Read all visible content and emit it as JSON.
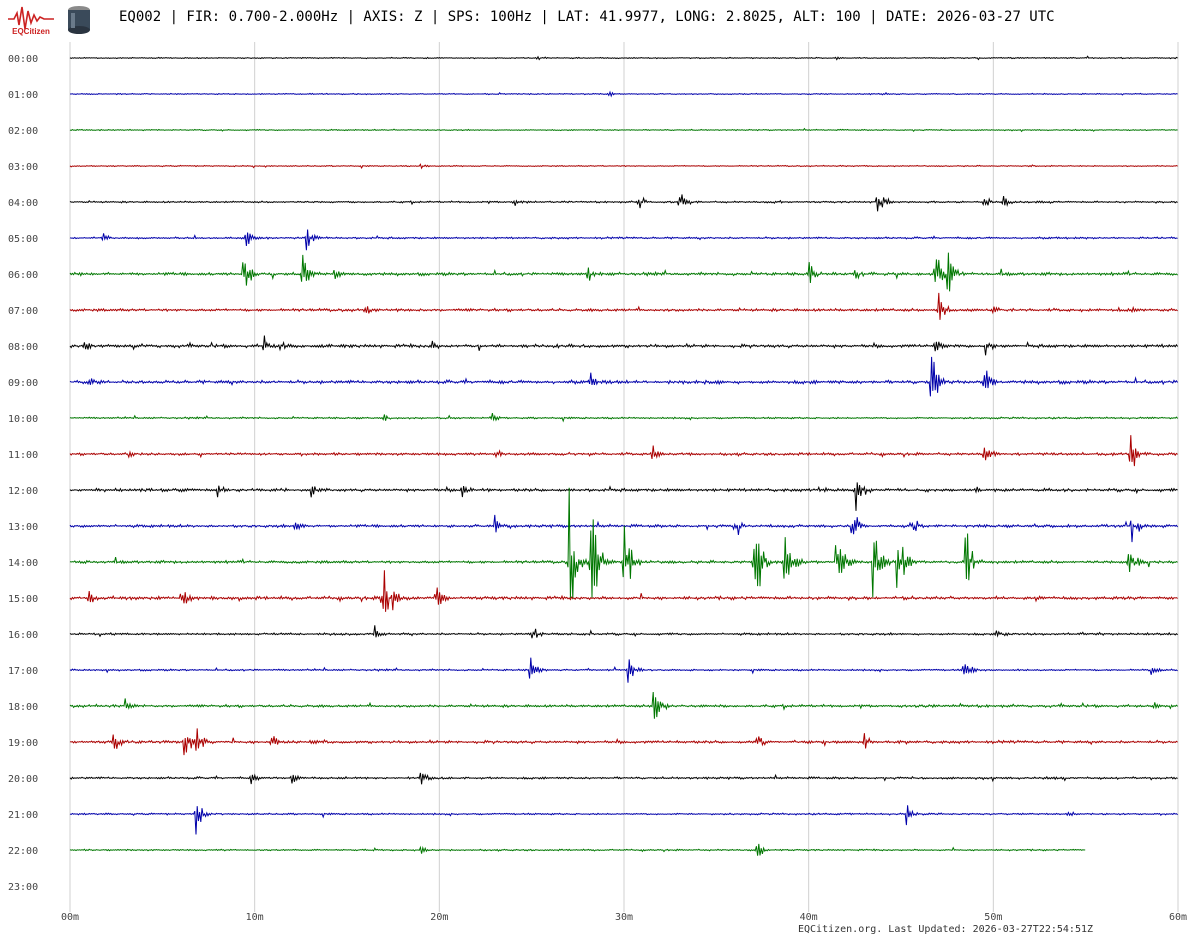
{
  "header": {
    "logo_text": "EQCitizen",
    "title": "EQ002 | FIR: 0.700-2.000Hz | AXIS: Z | SPS: 100Hz | LAT: 41.9977, LONG: 2.8025, ALT: 100 | DATE: 2026-03-27 UTC"
  },
  "footer": {
    "text": "EQCitizen.org. Last Updated: 2026-03-27T22:54:51Z"
  },
  "colors": {
    "cycle": [
      "#000000",
      "#0000aa",
      "#007700",
      "#aa0000"
    ],
    "grid": "#d0d0d0",
    "axis_text": "#444444"
  },
  "chart_data": {
    "type": "line",
    "kind": "helicorder",
    "title": "",
    "xlabel": "",
    "ylabel": "",
    "xlim": [
      0,
      60
    ],
    "x_tick_labels": [
      "00m",
      "10m",
      "20m",
      "30m",
      "40m",
      "50m",
      "60m"
    ],
    "x_tick_values": [
      0,
      10,
      20,
      30,
      40,
      50,
      60
    ],
    "row_labels": [
      "00:00",
      "01:00",
      "02:00",
      "03:00",
      "04:00",
      "05:00",
      "06:00",
      "07:00",
      "08:00",
      "09:00",
      "10:00",
      "11:00",
      "12:00",
      "13:00",
      "14:00",
      "15:00",
      "16:00",
      "17:00",
      "18:00",
      "19:00",
      "20:00",
      "21:00",
      "22:00",
      "23:00"
    ],
    "grid": true,
    "trace_end_minute_last_row": 55,
    "base_noise": [
      0.5,
      0.5,
      0.5,
      0.5,
      0.8,
      0.9,
      1.4,
      1.3,
      1.5,
      1.6,
      0.8,
      1.2,
      1.4,
      1.3,
      1.3,
      1.5,
      1.0,
      0.8,
      1.2,
      1.3,
      1.0,
      0.8,
      0.7,
      0
    ],
    "events": [
      {
        "row": 0,
        "minute": 25.3,
        "amp": 4
      },
      {
        "row": 0,
        "minute": 41.5,
        "amp": 2
      },
      {
        "row": 1,
        "minute": 29.2,
        "amp": 4
      },
      {
        "row": 1,
        "minute": 44,
        "amp": 3
      },
      {
        "row": 2,
        "minute": 17.5,
        "amp": 2
      },
      {
        "row": 3,
        "minute": 19,
        "amp": 3
      },
      {
        "row": 3,
        "minute": 52,
        "amp": 2
      },
      {
        "row": 4,
        "minute": 24,
        "amp": 8
      },
      {
        "row": 4,
        "minute": 30.8,
        "amp": 10
      },
      {
        "row": 4,
        "minute": 33,
        "amp": 18
      },
      {
        "row": 4,
        "minute": 43.7,
        "amp": 20
      },
      {
        "row": 4,
        "minute": 49.5,
        "amp": 10
      },
      {
        "row": 4,
        "minute": 50.5,
        "amp": 9
      },
      {
        "row": 5,
        "minute": 1.8,
        "amp": 6
      },
      {
        "row": 5,
        "minute": 9.5,
        "amp": 16
      },
      {
        "row": 5,
        "minute": 12.8,
        "amp": 20
      },
      {
        "row": 6,
        "minute": 9.4,
        "amp": 32
      },
      {
        "row": 6,
        "minute": 12.6,
        "amp": 32
      },
      {
        "row": 6,
        "minute": 14.3,
        "amp": 10
      },
      {
        "row": 6,
        "minute": 28,
        "amp": 12
      },
      {
        "row": 6,
        "minute": 40,
        "amp": 20
      },
      {
        "row": 6,
        "minute": 42.5,
        "amp": 10
      },
      {
        "row": 6,
        "minute": 46.8,
        "amp": 40
      },
      {
        "row": 6,
        "minute": 47.5,
        "amp": 38
      },
      {
        "row": 7,
        "minute": 16,
        "amp": 10
      },
      {
        "row": 7,
        "minute": 47,
        "amp": 28
      },
      {
        "row": 7,
        "minute": 50,
        "amp": 10
      },
      {
        "row": 7,
        "minute": 57.5,
        "amp": 9
      },
      {
        "row": 8,
        "minute": 0.8,
        "amp": 8
      },
      {
        "row": 8,
        "minute": 10.5,
        "amp": 12
      },
      {
        "row": 8,
        "minute": 11.4,
        "amp": 12
      },
      {
        "row": 8,
        "minute": 19.6,
        "amp": 10
      },
      {
        "row": 8,
        "minute": 46.8,
        "amp": 18
      },
      {
        "row": 8,
        "minute": 49.6,
        "amp": 14
      },
      {
        "row": 9,
        "minute": 1,
        "amp": 8
      },
      {
        "row": 9,
        "minute": 28.2,
        "amp": 16
      },
      {
        "row": 9,
        "minute": 46.6,
        "amp": 56
      },
      {
        "row": 9,
        "minute": 49.5,
        "amp": 24
      },
      {
        "row": 10,
        "minute": 17,
        "amp": 6
      },
      {
        "row": 10,
        "minute": 22.8,
        "amp": 8
      },
      {
        "row": 11,
        "minute": 3.2,
        "amp": 6
      },
      {
        "row": 11,
        "minute": 23,
        "amp": 10
      },
      {
        "row": 11,
        "minute": 31.5,
        "amp": 12
      },
      {
        "row": 11,
        "minute": 49.5,
        "amp": 20
      },
      {
        "row": 11,
        "minute": 57.4,
        "amp": 30
      },
      {
        "row": 12,
        "minute": 8,
        "amp": 12
      },
      {
        "row": 12,
        "minute": 13,
        "amp": 12
      },
      {
        "row": 12,
        "minute": 21.2,
        "amp": 12
      },
      {
        "row": 12,
        "minute": 40.5,
        "amp": 10
      },
      {
        "row": 12,
        "minute": 42.5,
        "amp": 38
      },
      {
        "row": 12,
        "minute": 49,
        "amp": 8
      },
      {
        "row": 13,
        "minute": 12.2,
        "amp": 16
      },
      {
        "row": 13,
        "minute": 23,
        "amp": 14
      },
      {
        "row": 13,
        "minute": 36,
        "amp": 18
      },
      {
        "row": 13,
        "minute": 42.3,
        "amp": 26
      },
      {
        "row": 13,
        "minute": 45.5,
        "amp": 22
      },
      {
        "row": 13,
        "minute": 57.5,
        "amp": 26
      },
      {
        "row": 14,
        "minute": 27,
        "amp": 90
      },
      {
        "row": 14,
        "minute": 28.2,
        "amp": 88
      },
      {
        "row": 14,
        "minute": 30,
        "amp": 82
      },
      {
        "row": 14,
        "minute": 37,
        "amp": 84
      },
      {
        "row": 14,
        "minute": 38.7,
        "amp": 70
      },
      {
        "row": 14,
        "minute": 41.5,
        "amp": 64
      },
      {
        "row": 14,
        "minute": 43.5,
        "amp": 66
      },
      {
        "row": 14,
        "minute": 44.8,
        "amp": 62
      },
      {
        "row": 14,
        "minute": 48.5,
        "amp": 46
      },
      {
        "row": 14,
        "minute": 57.3,
        "amp": 28
      },
      {
        "row": 15,
        "minute": 1,
        "amp": 10
      },
      {
        "row": 15,
        "minute": 6,
        "amp": 20
      },
      {
        "row": 15,
        "minute": 16.9,
        "amp": 88
      },
      {
        "row": 15,
        "minute": 19.8,
        "amp": 22
      },
      {
        "row": 16,
        "minute": 16.5,
        "amp": 10
      },
      {
        "row": 16,
        "minute": 25,
        "amp": 14
      },
      {
        "row": 16,
        "minute": 50.2,
        "amp": 10
      },
      {
        "row": 17,
        "minute": 24.9,
        "amp": 22
      },
      {
        "row": 17,
        "minute": 30.2,
        "amp": 18
      },
      {
        "row": 17,
        "minute": 48.4,
        "amp": 20
      },
      {
        "row": 17,
        "minute": 58.5,
        "amp": 8
      },
      {
        "row": 18,
        "minute": 3,
        "amp": 10
      },
      {
        "row": 18,
        "minute": 31.6,
        "amp": 36
      },
      {
        "row": 18,
        "minute": 58.6,
        "amp": 8
      },
      {
        "row": 19,
        "minute": 2.3,
        "amp": 18
      },
      {
        "row": 19,
        "minute": 6.2,
        "amp": 28
      },
      {
        "row": 19,
        "minute": 6.8,
        "amp": 24
      },
      {
        "row": 19,
        "minute": 10.9,
        "amp": 12
      },
      {
        "row": 19,
        "minute": 37.2,
        "amp": 14
      },
      {
        "row": 19,
        "minute": 43,
        "amp": 14
      },
      {
        "row": 20,
        "minute": 9.8,
        "amp": 8
      },
      {
        "row": 20,
        "minute": 12,
        "amp": 10
      },
      {
        "row": 20,
        "minute": 19,
        "amp": 12
      },
      {
        "row": 21,
        "minute": 6.8,
        "amp": 26
      },
      {
        "row": 21,
        "minute": 45.3,
        "amp": 16
      },
      {
        "row": 21,
        "minute": 54,
        "amp": 6
      },
      {
        "row": 22,
        "minute": 19,
        "amp": 6
      },
      {
        "row": 22,
        "minute": 37.2,
        "amp": 14
      }
    ]
  }
}
